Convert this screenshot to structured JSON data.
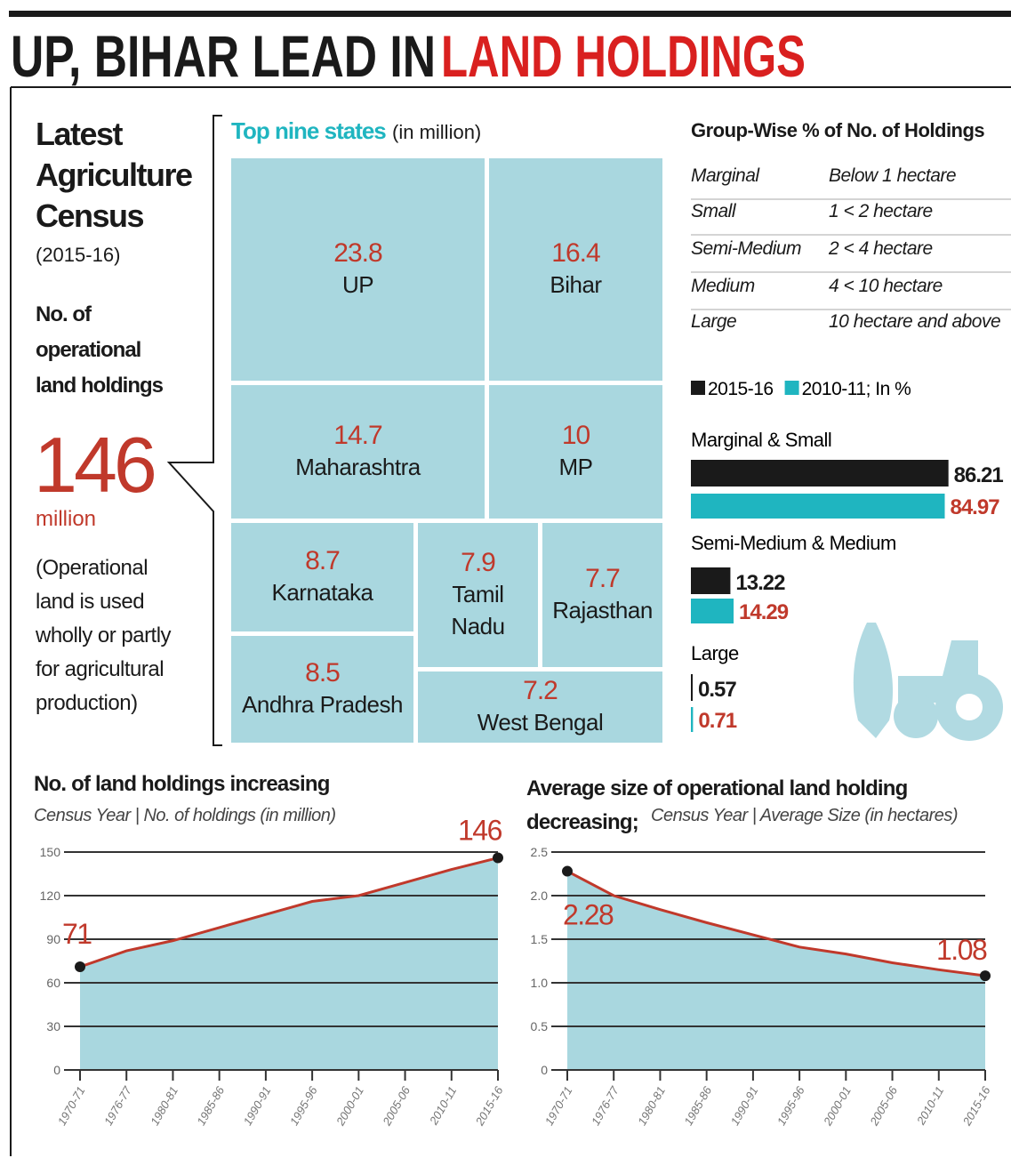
{
  "title": {
    "black": "UP, BIHAR LEAD IN",
    "red": "LAND HOLDINGS"
  },
  "census": {
    "heading": "Latest Agriculture Census",
    "year": "(2015-16)",
    "label": "No. of operational land holdings",
    "number": "146",
    "unit": "million",
    "note": "(Operational land is used wholly or partly for agricultural production)"
  },
  "groups": {
    "title": "Group-Wise % of No. of Holdings",
    "rows": [
      [
        "Marginal",
        "Below 1 hectare"
      ],
      [
        "Small",
        "1 < 2 hectare"
      ],
      [
        "Semi-Medium",
        "2 < 4 hectare"
      ],
      [
        "Medium",
        "4 < 10 hectare"
      ],
      [
        "Large",
        "10 hectare and above"
      ]
    ]
  },
  "chart_data": [
    {
      "type": "treemap",
      "title": "Top nine states",
      "subtitle": "(in million)",
      "color": "#a9d7df",
      "label_color": "#c0392b",
      "categories": [
        "UP",
        "Bihar",
        "Maharashtra",
        "MP",
        "Karnataka",
        "Tamil Nadu",
        "Rajasthan",
        "Andhra Pradesh",
        "West Bengal"
      ],
      "values": [
        23.8,
        16.4,
        14.7,
        10,
        8.7,
        7.9,
        7.7,
        8.5,
        7.2
      ]
    },
    {
      "type": "hbar",
      "categories": [
        "Marginal & Small",
        "Semi-Medium & Medium",
        "Large"
      ],
      "xlim": [
        0,
        100
      ],
      "series": [
        {
          "name": "2015-16",
          "color": "#1a1a1a",
          "label_color": "#1a1a1a",
          "values": [
            86.21,
            13.22,
            0.57
          ]
        },
        {
          "name": "2010-11; In %",
          "color": "#1fb5c0",
          "label_color": "#c0392b",
          "values": [
            84.97,
            14.29,
            0.71
          ]
        }
      ]
    },
    {
      "type": "line",
      "title": "No. of land holdings increasing",
      "subtitle": "Census Year | No. of holdings (in million)",
      "color": "#c0392b",
      "area_color": "#a9d7df",
      "grid": true,
      "categories": [
        "1970-71",
        "1976-77",
        "1980-81",
        "1985-86",
        "1990-91",
        "1995-96",
        "2000-01",
        "2005-06",
        "2010-11",
        "2015-16"
      ],
      "values": [
        71,
        82,
        89,
        98,
        107,
        116,
        120,
        129,
        138,
        146
      ],
      "ylim": [
        0,
        150
      ],
      "yticks": [
        0,
        30,
        60,
        90,
        120,
        150
      ]
    },
    {
      "type": "line",
      "title": "Average size of operational land holding decreasing;",
      "subtitle": "Census Year | Average Size (in hectares)",
      "color": "#c0392b",
      "area_color": "#a9d7df",
      "grid": true,
      "categories": [
        "1970-71",
        "1976-77",
        "1980-81",
        "1985-86",
        "1990-91",
        "1995-96",
        "2000-01",
        "2005-06",
        "2010-11",
        "2015-16"
      ],
      "values": [
        2.28,
        2.0,
        1.84,
        1.69,
        1.55,
        1.41,
        1.33,
        1.23,
        1.15,
        1.08
      ],
      "ylim": [
        0,
        2.5
      ],
      "yticks": [
        0,
        0.5,
        {
          "value": 1,
          "label": "1.0"
        },
        1.5,
        {
          "value": 2,
          "label": "2.0"
        },
        2.5
      ]
    }
  ]
}
